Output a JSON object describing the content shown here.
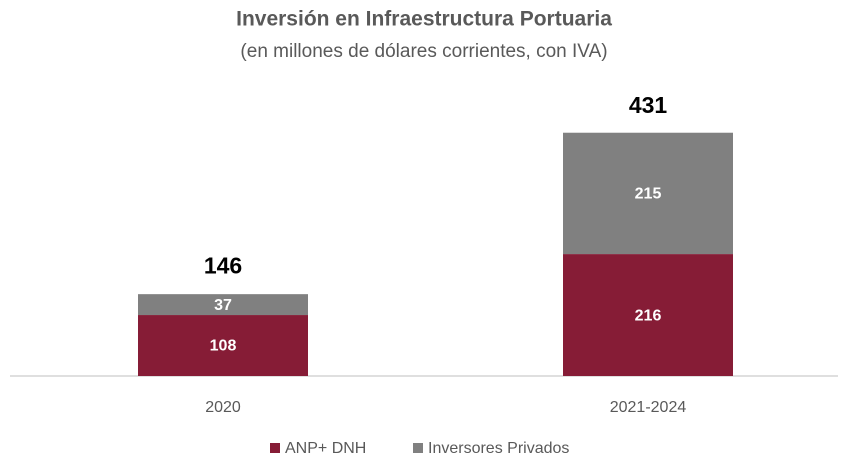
{
  "chart_data": {
    "type": "stacked_bar",
    "title": "Inversión en Infraestructura Portuaria",
    "subtitle": "(en millones de dólares corrientes, con IVA)",
    "categories": [
      "2020",
      "2021-2024"
    ],
    "series": [
      {
        "name": "ANP+ DNH",
        "color": "#861c36",
        "values": [
          108,
          216
        ]
      },
      {
        "name": "Inversores Privados",
        "color": "#808080",
        "values": [
          37,
          215
        ]
      }
    ],
    "totals": [
      146,
      431
    ],
    "ylim": [
      0,
      450
    ],
    "legend": "bottom"
  }
}
